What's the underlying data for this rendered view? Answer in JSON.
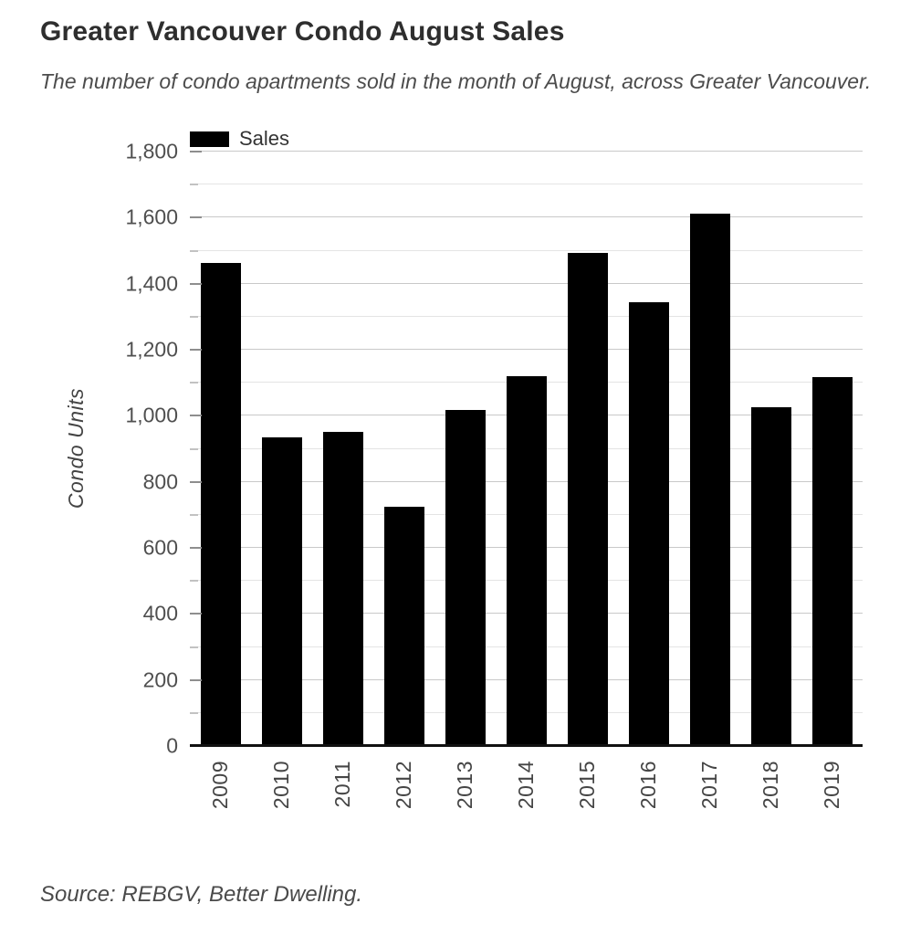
{
  "header": {
    "title": "Greater Vancouver Condo August Sales",
    "subtitle": "The number of condo apartments sold in the month of August, across Greater Vancouver."
  },
  "legend": {
    "label": "Sales",
    "swatch_color": "#000000"
  },
  "source": "Source: REBGV, Better Dwelling.",
  "chart_data": {
    "type": "bar",
    "title": "Greater Vancouver Condo August Sales",
    "subtitle": "The number of condo apartments sold in the month of August, across Greater Vancouver.",
    "categories": [
      "2009",
      "2010",
      "2011",
      "2012",
      "2013",
      "2014",
      "2015",
      "2016",
      "2017",
      "2018",
      "2019"
    ],
    "series": [
      {
        "name": "Sales",
        "values": [
          1464,
          935,
          951,
          725,
          1018,
          1121,
          1494,
          1343,
          1613,
          1025,
          1116
        ]
      }
    ],
    "xlabel": "",
    "ylabel": "Condo Units",
    "ylim": [
      0,
      1800
    ],
    "ytick_step": 200,
    "minor_step": 100,
    "ytick_labels": [
      "0",
      "200",
      "400",
      "600",
      "800",
      "1,000",
      "1,200",
      "1,400",
      "1,600",
      "1,800"
    ],
    "grid": true,
    "legend_position": "top-left",
    "bar_color": "#000000",
    "background": "#ffffff"
  }
}
